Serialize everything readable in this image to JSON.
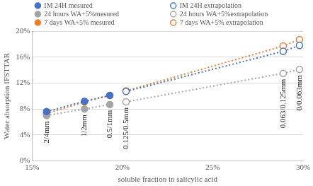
{
  "chart_data": {
    "type": "scatter",
    "x_label": "soluble fraction in salicylic acid",
    "y_label": "Water absorption IFSTTAR",
    "xlim": [
      15,
      30
    ],
    "xticks": [
      {
        "value": 15,
        "label": "15%"
      },
      {
        "value": 20,
        "label": "20%"
      },
      {
        "value": 25,
        "label": "25%"
      },
      {
        "value": 30,
        "label": "30%"
      }
    ],
    "ylim": [
      0,
      20
    ],
    "yticks": [
      {
        "value": 0,
        "label": "0%"
      },
      {
        "value": 4,
        "label": "4%"
      },
      {
        "value": 8,
        "label": "8%"
      },
      {
        "value": 12,
        "label": "12%"
      },
      {
        "value": 16,
        "label": "16%"
      },
      {
        "value": 20,
        "label": "20%"
      }
    ],
    "grid": "y",
    "legend": "top",
    "series": [
      {
        "name": "IM 24H mesured",
        "color": "#4472c4",
        "marker": "circle",
        "line_style": "dotted",
        "x": [
          15.8,
          17.9,
          19.3
        ],
        "values": [
          7.6,
          9.2,
          10.1
        ]
      },
      {
        "name": "IM 24H extrapolation",
        "color": "#4472c4",
        "marker": "circle_open",
        "line_style": "dotted",
        "x": [
          20.2,
          28.9,
          29.8
        ],
        "values": [
          10.7,
          16.9,
          17.8
        ]
      },
      {
        "name": "24 hours WA+5%mesured",
        "color": "#a5a5a5",
        "marker": "circle",
        "line_style": "dotted",
        "x": [
          15.8,
          17.9,
          19.3
        ],
        "values": [
          7.0,
          8.0,
          8.7
        ]
      },
      {
        "name": "24 hours WA+5%extrapolation",
        "color": "#a5a5a5",
        "marker": "circle_open",
        "line_style": "dotted",
        "x": [
          20.2,
          28.9,
          29.8
        ],
        "values": [
          9.1,
          13.5,
          14.1
        ]
      },
      {
        "name": "7 days WA+5% mesured",
        "color": "#ed7d31",
        "marker": "circle",
        "line_style": "dotted",
        "x": [
          15.8,
          17.9,
          19.3
        ],
        "values": [
          7.3,
          9.1,
          10.1
        ]
      },
      {
        "name": "7 days WA+5% extrapolation",
        "color": "#ed7d31",
        "marker": "circle_open",
        "line_style": "dotted",
        "x": [
          20.2,
          28.9,
          29.8
        ],
        "values": [
          10.8,
          17.7,
          18.7
        ]
      }
    ],
    "annotations": [
      {
        "text": "2/4mm",
        "x": 15.8
      },
      {
        "text": "1/2mm",
        "x": 17.9
      },
      {
        "text": "0.5/1mm",
        "x": 19.3
      },
      {
        "text": "0.125/0.5mm",
        "x": 20.2
      },
      {
        "text": "0.063/0.125mm",
        "x": 28.9
      },
      {
        "text": "0/0.063mm",
        "x": 29.8
      }
    ]
  }
}
